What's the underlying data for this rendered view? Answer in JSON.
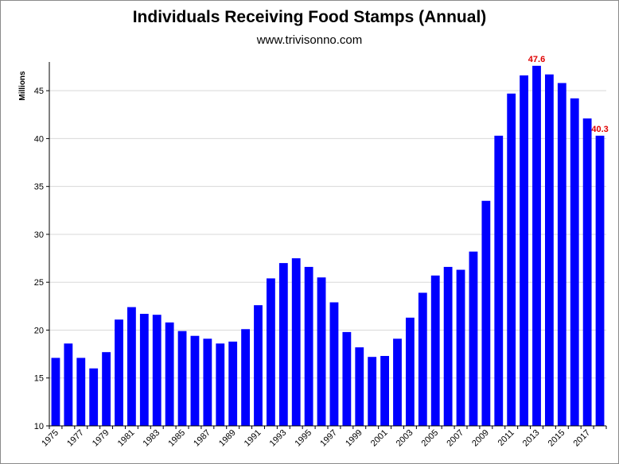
{
  "chart_data": {
    "type": "bar",
    "title": "Individuals Receiving Food Stamps (Annual)",
    "subtitle": "www.trivisonno.com",
    "xlabel": "",
    "ylabel": "Millions",
    "ylim": [
      10,
      48
    ],
    "yticks": [
      10,
      15,
      20,
      25,
      30,
      35,
      40,
      45
    ],
    "grid": "horizontal",
    "bar_color": "#0000ff",
    "label_color": "#e00000",
    "categories": [
      "1975",
      "1976",
      "1977",
      "1978",
      "1979",
      "1980",
      "1981",
      "1982",
      "1983",
      "1984",
      "1985",
      "1986",
      "1987",
      "1988",
      "1989",
      "1990",
      "1991",
      "1992",
      "1993",
      "1994",
      "1995",
      "1996",
      "1997",
      "1998",
      "1999",
      "2000",
      "2001",
      "2002",
      "2003",
      "2004",
      "2005",
      "2006",
      "2007",
      "2008",
      "2009",
      "2010",
      "2011",
      "2012",
      "2013",
      "2014",
      "2015",
      "2016",
      "2017",
      "2018"
    ],
    "tick_labels": [
      "1975",
      "1977",
      "1979",
      "1981",
      "1983",
      "1985",
      "1987",
      "1989",
      "1991",
      "1993",
      "1995",
      "1997",
      "1999",
      "2001",
      "2003",
      "2005",
      "2007",
      "2009",
      "2011",
      "2013",
      "2015",
      "2017"
    ],
    "values": [
      17.1,
      18.6,
      17.1,
      16.0,
      17.7,
      21.1,
      22.4,
      21.7,
      21.6,
      20.8,
      19.9,
      19.4,
      19.1,
      18.6,
      18.8,
      20.1,
      22.6,
      25.4,
      27.0,
      27.5,
      26.6,
      25.5,
      22.9,
      19.8,
      18.2,
      17.2,
      17.3,
      19.1,
      21.3,
      23.9,
      25.7,
      26.6,
      26.3,
      28.2,
      33.5,
      40.3,
      44.7,
      46.6,
      47.6,
      46.7,
      45.8,
      44.2,
      42.1,
      40.3
    ],
    "data_labels": [
      {
        "category": "2013",
        "text": "47.6"
      },
      {
        "category": "2018",
        "text": "40.3"
      }
    ]
  }
}
